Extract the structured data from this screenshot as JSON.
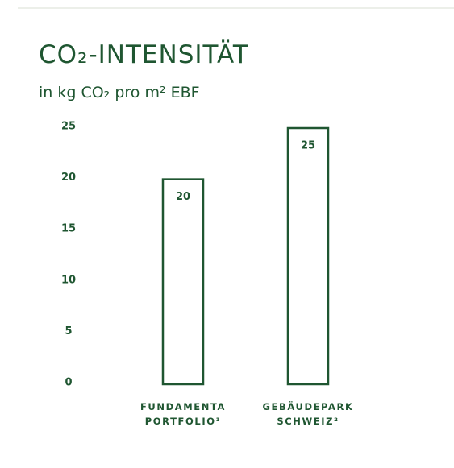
{
  "chart_data": {
    "type": "bar",
    "title": "CO₂-INTENSITÄT",
    "subtitle": "in kg CO₂ pro m² EBF",
    "categories": [
      "FUNDAMENTA PORTFOLIO¹",
      "GEBÄUDEPARK SCHWEIZ²"
    ],
    "values": [
      20,
      25
    ],
    "color": "#1f5631",
    "ylim": [
      0,
      25
    ],
    "yticks": [
      0,
      5,
      10,
      15,
      20,
      25
    ],
    "grid": false
  }
}
